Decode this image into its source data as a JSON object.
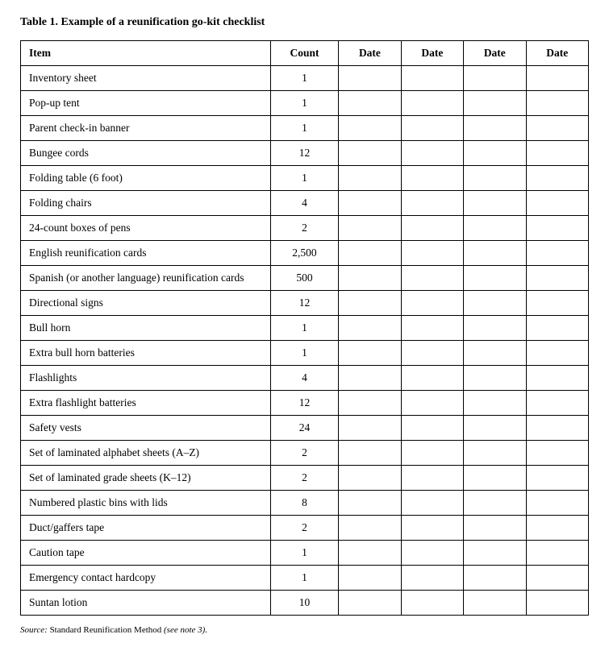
{
  "title": "Table 1. Example of a reunification go-kit checklist",
  "headers": {
    "item": "Item",
    "count": "Count",
    "date1": "Date",
    "date2": "Date",
    "date3": "Date",
    "date4": "Date"
  },
  "rows": [
    {
      "item": "Inventory sheet",
      "count": "1"
    },
    {
      "item": "Pop-up tent",
      "count": "1"
    },
    {
      "item": "Parent check-in banner",
      "count": "1"
    },
    {
      "item": "Bungee cords",
      "count": "12"
    },
    {
      "item": "Folding table (6 foot)",
      "count": "1"
    },
    {
      "item": "Folding chairs",
      "count": "4"
    },
    {
      "item": "24-count boxes of pens",
      "count": "2"
    },
    {
      "item": "English reunification cards",
      "count": "2,500"
    },
    {
      "item": "Spanish (or another language) reunification cards",
      "count": "500"
    },
    {
      "item": "Directional signs",
      "count": "12"
    },
    {
      "item": "Bull horn",
      "count": "1"
    },
    {
      "item": "Extra bull horn batteries",
      "count": "1"
    },
    {
      "item": "Flashlights",
      "count": "4"
    },
    {
      "item": "Extra flashlight batteries",
      "count": "12"
    },
    {
      "item": "Safety vests",
      "count": "24"
    },
    {
      "item": "Set of laminated alphabet sheets (A–Z)",
      "count": "2"
    },
    {
      "item": "Set of laminated grade sheets (K–12)",
      "count": "2"
    },
    {
      "item": "Numbered plastic bins with lids",
      "count": "8"
    },
    {
      "item": "Duct/gaffers tape",
      "count": "2"
    },
    {
      "item": "Caution tape",
      "count": "1"
    },
    {
      "item": "Emergency contact hardcopy",
      "count": "1"
    },
    {
      "item": "Suntan lotion",
      "count": "10"
    }
  ],
  "source": {
    "label": "Source:",
    "text": "Standard Reunification Method",
    "note": "(see note 3)."
  },
  "styling": {
    "font_family": "Georgia, Times New Roman, serif",
    "title_fontsize": 14,
    "title_fontweight": "bold",
    "cell_fontsize": 13.5,
    "source_fontsize": 11,
    "border_color": "#000000",
    "background_color": "#ffffff",
    "text_color": "#000000",
    "column_widths": {
      "item": "44%",
      "count": "12%",
      "date": "11%"
    },
    "date_columns": 4
  }
}
